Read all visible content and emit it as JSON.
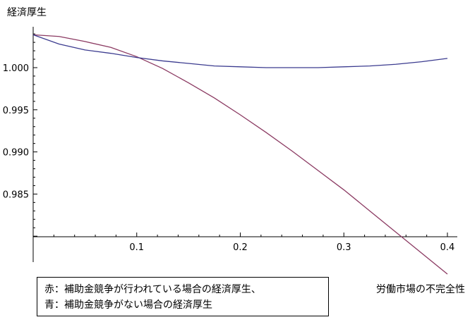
{
  "chart_data": {
    "type": "line",
    "ylabel": "経済厚生",
    "xlabel": "労働市場の不完全性",
    "x_ticks": [
      "0.1",
      "0.2",
      "0.3",
      "0.4"
    ],
    "y_ticks": [
      "1.000",
      "0.995",
      "0.990",
      "0.985"
    ],
    "xlim": [
      0,
      0.4
    ],
    "ylim": [
      0.9795,
      1.0045
    ],
    "grid": false,
    "series": [
      {
        "color": "#8B3A62",
        "x": [
          0,
          0.025,
          0.05,
          0.075,
          0.1,
          0.125,
          0.15,
          0.175,
          0.2,
          0.225,
          0.25,
          0.275,
          0.3,
          0.325,
          0.35,
          0.375,
          0.4
        ],
        "y": [
          1.0039,
          1.0037,
          1.0031,
          1.0024,
          1.0013,
          0.9999,
          0.9982,
          0.9964,
          0.9944,
          0.9923,
          0.9901,
          0.9878,
          0.9855,
          0.983,
          0.9805,
          0.978,
          0.9755
        ]
      },
      {
        "color": "#3B3B8F",
        "x": [
          0,
          0.025,
          0.05,
          0.075,
          0.1,
          0.125,
          0.15,
          0.175,
          0.2,
          0.225,
          0.25,
          0.275,
          0.3,
          0.325,
          0.35,
          0.375,
          0.4
        ],
        "y": [
          1.0039,
          1.0028,
          1.0021,
          1.0017,
          1.0012,
          1.0008,
          1.0005,
          1.0002,
          1.0001,
          1.0,
          1.0,
          1.0,
          1.0001,
          1.0002,
          1.0004,
          1.0007,
          1.0011
        ]
      }
    ]
  },
  "notes": {
    "red": "赤：補助金競争が行われている場合の経済厚生、",
    "blue": "青：補助金競争がない場合の経済厚生"
  }
}
